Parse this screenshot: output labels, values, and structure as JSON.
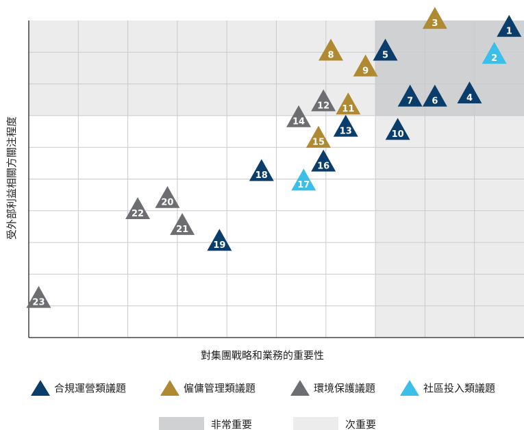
{
  "chart_data": {
    "type": "scatter",
    "xlabel": "對集團戰略和業務的重要性",
    "ylabel": "受外部利益相關方關注程度",
    "xlim": [
      0,
      10
    ],
    "ylim": [
      0,
      10
    ],
    "grid": true,
    "legend_position": "bottom",
    "categories": [
      {
        "key": "compliance",
        "name": "合規運營類議題",
        "color": "#0b3d6b"
      },
      {
        "key": "employment",
        "name": "僱傭管理類議題",
        "color": "#b08a32"
      },
      {
        "key": "environment",
        "name": "環境保護議題",
        "color": "#6d6e71"
      },
      {
        "key": "community",
        "name": "社區投入類議題",
        "color": "#3bbfe8"
      }
    ],
    "zones": [
      {
        "name": "非常重要",
        "color": "#d0d1d3",
        "x": [
          7,
          10
        ],
        "y": [
          7,
          10
        ]
      },
      {
        "name": "次重要",
        "color": "#ececed",
        "x": [
          0,
          10
        ],
        "y": [
          7,
          10
        ]
      },
      {
        "name": "次重要",
        "color": "#ececed",
        "x": [
          7,
          10
        ],
        "y": [
          0,
          7
        ]
      }
    ],
    "zone_legend": [
      {
        "name": "非常重要",
        "color": "#d0d1d3"
      },
      {
        "name": "次重要",
        "color": "#ececed"
      }
    ],
    "points": [
      {
        "id": "1",
        "category": "compliance",
        "x": 9.7,
        "y": 9.75
      },
      {
        "id": "2",
        "category": "community",
        "x": 9.4,
        "y": 8.9
      },
      {
        "id": "3",
        "category": "employment",
        "x": 8.2,
        "y": 10.0
      },
      {
        "id": "4",
        "category": "compliance",
        "x": 8.9,
        "y": 7.65
      },
      {
        "id": "5",
        "category": "compliance",
        "x": 7.2,
        "y": 9.0
      },
      {
        "id": "6",
        "category": "compliance",
        "x": 8.2,
        "y": 7.55
      },
      {
        "id": "7",
        "category": "compliance",
        "x": 7.7,
        "y": 7.55
      },
      {
        "id": "8",
        "category": "employment",
        "x": 6.1,
        "y": 9.0
      },
      {
        "id": "9",
        "category": "employment",
        "x": 6.8,
        "y": 8.5
      },
      {
        "id": "10",
        "category": "compliance",
        "x": 7.45,
        "y": 6.5
      },
      {
        "id": "11",
        "category": "employment",
        "x": 6.45,
        "y": 7.3
      },
      {
        "id": "12",
        "category": "environment",
        "x": 5.95,
        "y": 7.4
      },
      {
        "id": "13",
        "category": "compliance",
        "x": 6.4,
        "y": 6.6
      },
      {
        "id": "14",
        "category": "environment",
        "x": 5.45,
        "y": 6.9
      },
      {
        "id": "15",
        "category": "employment",
        "x": 5.85,
        "y": 6.25
      },
      {
        "id": "16",
        "category": "compliance",
        "x": 5.95,
        "y": 5.5
      },
      {
        "id": "17",
        "category": "community",
        "x": 5.55,
        "y": 4.9
      },
      {
        "id": "18",
        "category": "compliance",
        "x": 4.7,
        "y": 5.2
      },
      {
        "id": "19",
        "category": "compliance",
        "x": 3.85,
        "y": 3.0
      },
      {
        "id": "20",
        "category": "environment",
        "x": 2.8,
        "y": 4.35
      },
      {
        "id": "21",
        "category": "environment",
        "x": 3.1,
        "y": 3.5
      },
      {
        "id": "22",
        "category": "environment",
        "x": 2.2,
        "y": 4.0
      },
      {
        "id": "23",
        "category": "environment",
        "x": 0.2,
        "y": 1.2
      }
    ]
  }
}
